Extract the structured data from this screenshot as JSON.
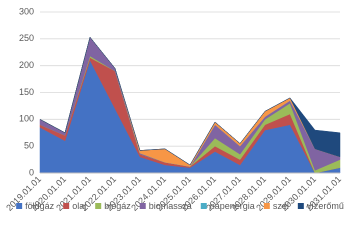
{
  "chart_data": {
    "type": "stacked_area",
    "categories": [
      "2019.01.01",
      "2020.01.01",
      "2021.01.01",
      "2022.01.01",
      "2023.01.01",
      "2024.01.01",
      "2025.01.01",
      "2026.01.01",
      "2027.01.01",
      "2028.01.01",
      "2029.01.01",
      "2030.01.01",
      "2031.01.01"
    ],
    "series": [
      {
        "name": "földgáz",
        "color": "#4472c4",
        "values": [
          85,
          60,
          210,
          120,
          30,
          15,
          10,
          40,
          15,
          80,
          90,
          0,
          10
        ]
      },
      {
        "name": "olaj",
        "color": "#c0504d",
        "values": [
          5,
          10,
          5,
          70,
          5,
          5,
          2,
          10,
          10,
          10,
          20,
          0,
          0
        ]
      },
      {
        "name": "biogáz",
        "color": "#9bbb59",
        "values": [
          0,
          0,
          3,
          0,
          0,
          0,
          0,
          15,
          10,
          10,
          20,
          5,
          15
        ]
      },
      {
        "name": "biomassza",
        "color": "#8064a2",
        "values": [
          10,
          5,
          35,
          5,
          2,
          0,
          0,
          25,
          15,
          5,
          5,
          40,
          5
        ]
      },
      {
        "name": "napenergia",
        "color": "#4bacc6",
        "values": [
          0,
          0,
          0,
          0,
          0,
          0,
          0,
          0,
          0,
          0,
          0,
          0,
          0
        ]
      },
      {
        "name": "szél",
        "color": "#f79646",
        "values": [
          0,
          0,
          0,
          0,
          5,
          25,
          3,
          5,
          5,
          10,
          5,
          0,
          0
        ]
      },
      {
        "name": "vízerőmű",
        "color": "#1f497d",
        "values": [
          0,
          0,
          0,
          0,
          0,
          0,
          0,
          0,
          0,
          0,
          0,
          35,
          45
        ]
      }
    ],
    "ylim": [
      0,
      300
    ],
    "yticks": [
      0,
      50,
      100,
      150,
      200,
      250,
      300
    ],
    "grid": true,
    "legend": "bottom"
  }
}
